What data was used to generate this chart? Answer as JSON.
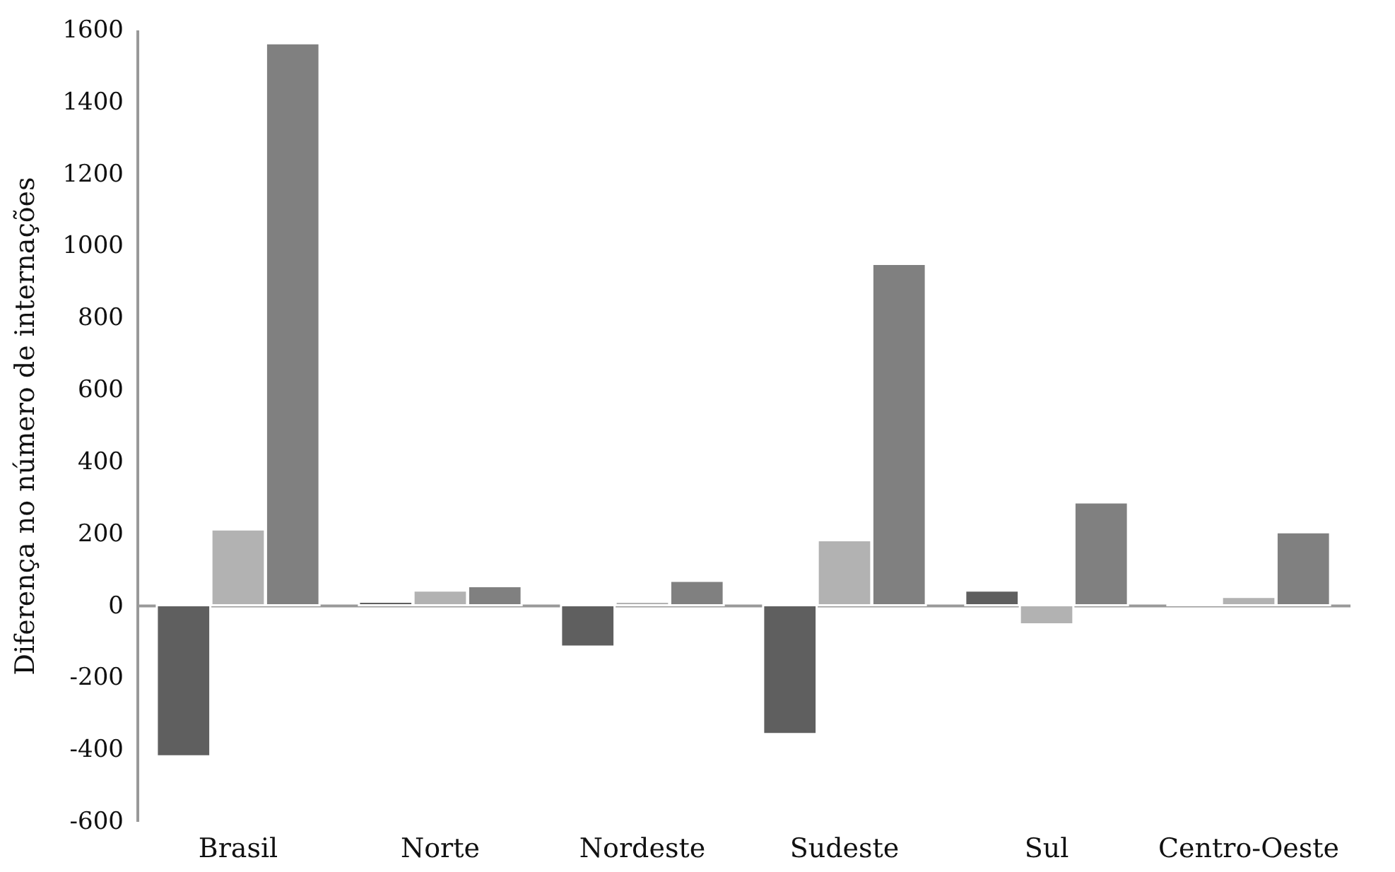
{
  "chart_data": {
    "type": "bar",
    "ylabel": "Diferença no número de internações",
    "categories": [
      "Brasil",
      "Norte",
      "Nordeste",
      "Sudeste",
      "Sul",
      "Centro-Oeste"
    ],
    "series": [
      {
        "color": "#5f5f5f",
        "values": [
          -420,
          10,
          -115,
          -358,
          41,
          5
        ]
      },
      {
        "color": "#b2b2b2",
        "values": [
          211,
          41,
          10,
          181,
          -53,
          23
        ]
      },
      {
        "color": "#808080",
        "values": [
          1562,
          53,
          68,
          949,
          286,
          203
        ]
      }
    ],
    "ylim": [
      -600,
      1600
    ],
    "yticks": [
      -600,
      -400,
      -200,
      0,
      200,
      400,
      600,
      800,
      1000,
      1200,
      1400,
      1600
    ],
    "legend": false
  }
}
